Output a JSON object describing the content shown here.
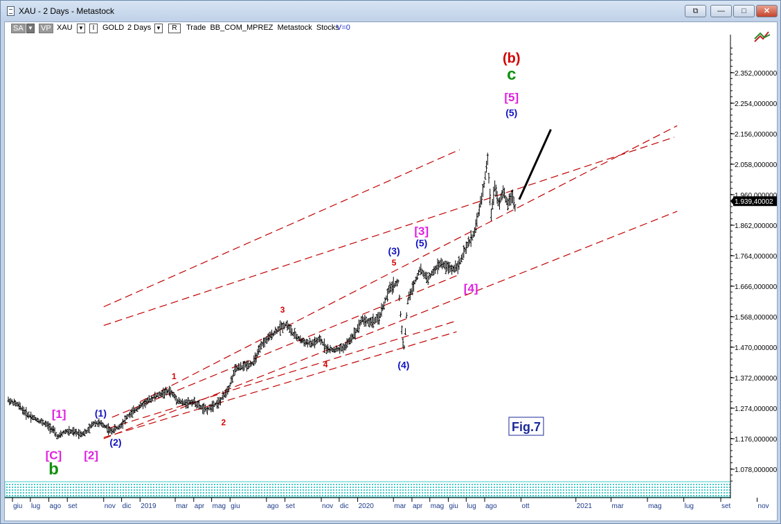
{
  "window": {
    "title": "XAU - 2 Days - Metastock",
    "buttons": [
      "restore-icon",
      "minimize-icon",
      "maximize-icon",
      "close-icon"
    ]
  },
  "toolbar": {
    "sa_label": "SA",
    "vp_label": "VP",
    "symbol": "XAU",
    "i_label": "I",
    "security_name": "GOLD",
    "period": "2 Days",
    "r_label": "R",
    "info": "Trade  BB_COM_MPREZ  Metastock  Stocks",
    "v_label": "V=0"
  },
  "colors": {
    "price_bars": "#000000",
    "channel_lines": "#c00000",
    "wave_red": "#d40000",
    "wave_blue": "#1010c0",
    "wave_magenta": "#e020e0",
    "wave_green": "#109010",
    "axis_labels": "#1c3a8a",
    "bottom_band": "#40c8c8"
  },
  "chart_data": {
    "type": "line",
    "title": "",
    "xlabel": "",
    "ylabel": "",
    "ylim": [
      1030,
      2460
    ],
    "y_ticks": [
      "2.352,000000",
      "2.254,000000",
      "2.156,000000",
      "2.058,000000",
      "1.960,000000",
      "1.862,000000",
      "1.764,000000",
      "1.666,000000",
      "1.568,000000",
      "1.470,000000",
      "1.372,000000",
      "1.274,000000",
      "1.176,000000",
      "1.078,000000"
    ],
    "y_tick_values": [
      2352,
      2254,
      2156,
      2058,
      1960,
      1862,
      1764,
      1666,
      1568,
      1470,
      1372,
      1274,
      1176,
      1078
    ],
    "last_price_label": "1.939,40002",
    "last_price": 1939.4,
    "x_ticks": [
      "giu",
      "lug",
      "ago",
      "set",
      "nov",
      "dic",
      "2019",
      "mar",
      "apr",
      "mag",
      "giu",
      "ago",
      "set",
      "nov",
      "dic",
      "2020",
      "mar",
      "apr",
      "mag",
      "giu",
      "lug",
      "ago",
      "ott",
      "2021",
      "mar",
      "mag",
      "lug",
      "set",
      "nov"
    ],
    "x_tick_dates": [
      "2018-06-01",
      "2018-07-01",
      "2018-08-01",
      "2018-09-01",
      "2018-11-01",
      "2018-12-01",
      "2019-01-01",
      "2019-03-01",
      "2019-04-01",
      "2019-05-01",
      "2019-06-01",
      "2019-08-01",
      "2019-09-01",
      "2019-11-01",
      "2019-12-01",
      "2020-01-01",
      "2020-03-01",
      "2020-04-01",
      "2020-05-01",
      "2020-06-01",
      "2020-07-01",
      "2020-08-01",
      "2020-10-01",
      "2021-01-01",
      "2021-03-01",
      "2021-05-01",
      "2021-07-01",
      "2021-09-01",
      "2021-11-01"
    ],
    "series": [
      {
        "x": [
          "2018-05-25",
          "2018-06-10",
          "2018-06-25",
          "2018-07-10",
          "2018-07-25",
          "2018-08-08",
          "2018-08-16",
          "2018-08-28",
          "2018-09-10",
          "2018-09-25",
          "2018-10-05",
          "2018-10-15",
          "2018-10-26",
          "2018-11-05",
          "2018-11-13",
          "2018-11-28",
          "2018-12-10",
          "2018-12-28",
          "2019-01-10",
          "2019-01-25",
          "2019-02-05",
          "2019-02-20",
          "2019-03-05",
          "2019-03-15",
          "2019-04-01",
          "2019-04-15",
          "2019-04-23",
          "2019-05-02",
          "2019-05-15",
          "2019-05-30",
          "2019-06-10",
          "2019-06-25",
          "2019-07-10",
          "2019-07-25",
          "2019-08-10",
          "2019-08-25",
          "2019-09-04",
          "2019-09-15",
          "2019-09-30",
          "2019-10-15",
          "2019-10-30",
          "2019-11-12",
          "2019-11-28",
          "2019-12-10",
          "2019-12-28",
          "2020-01-08",
          "2020-01-20",
          "2020-02-05",
          "2020-02-24",
          "2020-03-09",
          "2020-03-16",
          "2020-03-19",
          "2020-03-25",
          "2020-04-14",
          "2020-04-28",
          "2020-05-10",
          "2020-05-18",
          "2020-05-28",
          "2020-06-08",
          "2020-06-20",
          "2020-07-01",
          "2020-07-15",
          "2020-07-28",
          "2020-08-06",
          "2020-08-12",
          "2020-08-18",
          "2020-08-25",
          "2020-09-01",
          "2020-09-08",
          "2020-09-16",
          "2020-09-22"
        ],
        "values": [
          1300,
          1285,
          1255,
          1240,
          1225,
          1205,
          1180,
          1200,
          1198,
          1192,
          1200,
          1228,
          1225,
          1215,
          1200,
          1215,
          1245,
          1275,
          1292,
          1310,
          1320,
          1330,
          1300,
          1290,
          1295,
          1275,
          1268,
          1282,
          1295,
          1340,
          1400,
          1410,
          1420,
          1480,
          1510,
          1535,
          1545,
          1512,
          1490,
          1480,
          1495,
          1462,
          1462,
          1470,
          1517,
          1560,
          1550,
          1560,
          1660,
          1680,
          1500,
          1470,
          1620,
          1720,
          1690,
          1720,
          1740,
          1730,
          1720,
          1740,
          1790,
          1840,
          1960,
          2070,
          1900,
          1990,
          1930,
          1970,
          1930,
          1960,
          1910
        ]
      }
    ],
    "projection": {
      "x": [
        "2020-09-28",
        "2020-11-20"
      ],
      "values": [
        1945,
        2170
      ]
    },
    "channels": [
      {
        "x": [
          "2019-01-01",
          "2021-06-20"
        ],
        "values": [
          1295,
          2182
        ]
      },
      {
        "x": [
          "2018-11-01",
          "2021-06-20"
        ],
        "values": [
          1176,
          1907
        ]
      },
      {
        "x": [
          "2018-11-01",
          "2020-06-20"
        ],
        "values": [
          1600,
          2105
        ]
      },
      {
        "x": [
          "2018-11-01",
          "2021-06-15"
        ],
        "values": [
          1540,
          2145
        ]
      },
      {
        "x": [
          "2018-11-15",
          "2020-06-15"
        ],
        "values": [
          1245,
          1700
        ]
      },
      {
        "x": [
          "2018-11-10",
          "2020-06-15"
        ],
        "values": [
          1210,
          1555
        ]
      },
      {
        "x": [
          "2018-11-01",
          "2020-06-15"
        ],
        "values": [
          1180,
          1520
        ]
      }
    ],
    "annotations": [
      {
        "text": "(b)",
        "x": "2020-09-15",
        "y": 2384,
        "color": "red",
        "size": 20
      },
      {
        "text": "c",
        "x": "2020-09-15",
        "y": 2330,
        "color": "green",
        "size": 24
      },
      {
        "text": "[5]",
        "x": "2020-09-15",
        "y": 2261,
        "color": "magenta",
        "size": 17
      },
      {
        "text": "(5)",
        "x": "2020-09-15",
        "y": 2213,
        "color": "blue",
        "size": 14
      },
      {
        "text": "(3)",
        "x": "2020-03-02",
        "y": 1768,
        "color": "blue",
        "size": 14
      },
      {
        "text": "5",
        "x": "2020-03-02",
        "y": 1733,
        "color": "red",
        "size": 12
      },
      {
        "text": "[3]",
        "x": "2020-04-17",
        "y": 1831,
        "color": "magenta",
        "size": 17
      },
      {
        "text": "(5)",
        "x": "2020-04-17",
        "y": 1794,
        "color": "blue",
        "size": 14
      },
      {
        "text": "[4]",
        "x": "2020-07-09",
        "y": 1647,
        "color": "magenta",
        "size": 17
      },
      {
        "text": "3",
        "x": "2019-08-28",
        "y": 1581,
        "color": "red",
        "size": 12
      },
      {
        "text": "4",
        "x": "2019-11-08",
        "y": 1405,
        "color": "red",
        "size": 12
      },
      {
        "text": "(4)",
        "x": "2020-03-18",
        "y": 1402,
        "color": "blue",
        "size": 14
      },
      {
        "text": "1",
        "x": "2019-02-27",
        "y": 1368,
        "color": "red",
        "size": 12
      },
      {
        "text": "2",
        "x": "2019-05-21",
        "y": 1219,
        "color": "red",
        "size": 12
      },
      {
        "text": "[1]",
        "x": "2018-08-18",
        "y": 1243,
        "color": "magenta",
        "size": 17
      },
      {
        "text": "(1)",
        "x": "2018-10-27",
        "y": 1247,
        "color": "blue",
        "size": 14
      },
      {
        "text": "(2)",
        "x": "2018-11-21",
        "y": 1154,
        "color": "blue",
        "size": 14
      },
      {
        "text": "[2]",
        "x": "2018-10-11",
        "y": 1110,
        "color": "magenta",
        "size": 17
      },
      {
        "text": "[C]",
        "x": "2018-08-09",
        "y": 1110,
        "color": "magenta",
        "size": 17
      },
      {
        "text": "b",
        "x": "2018-08-09",
        "y": 1061,
        "color": "green",
        "size": 24
      }
    ],
    "figure_label": "Fig.7",
    "grid": false,
    "legend": "none"
  }
}
